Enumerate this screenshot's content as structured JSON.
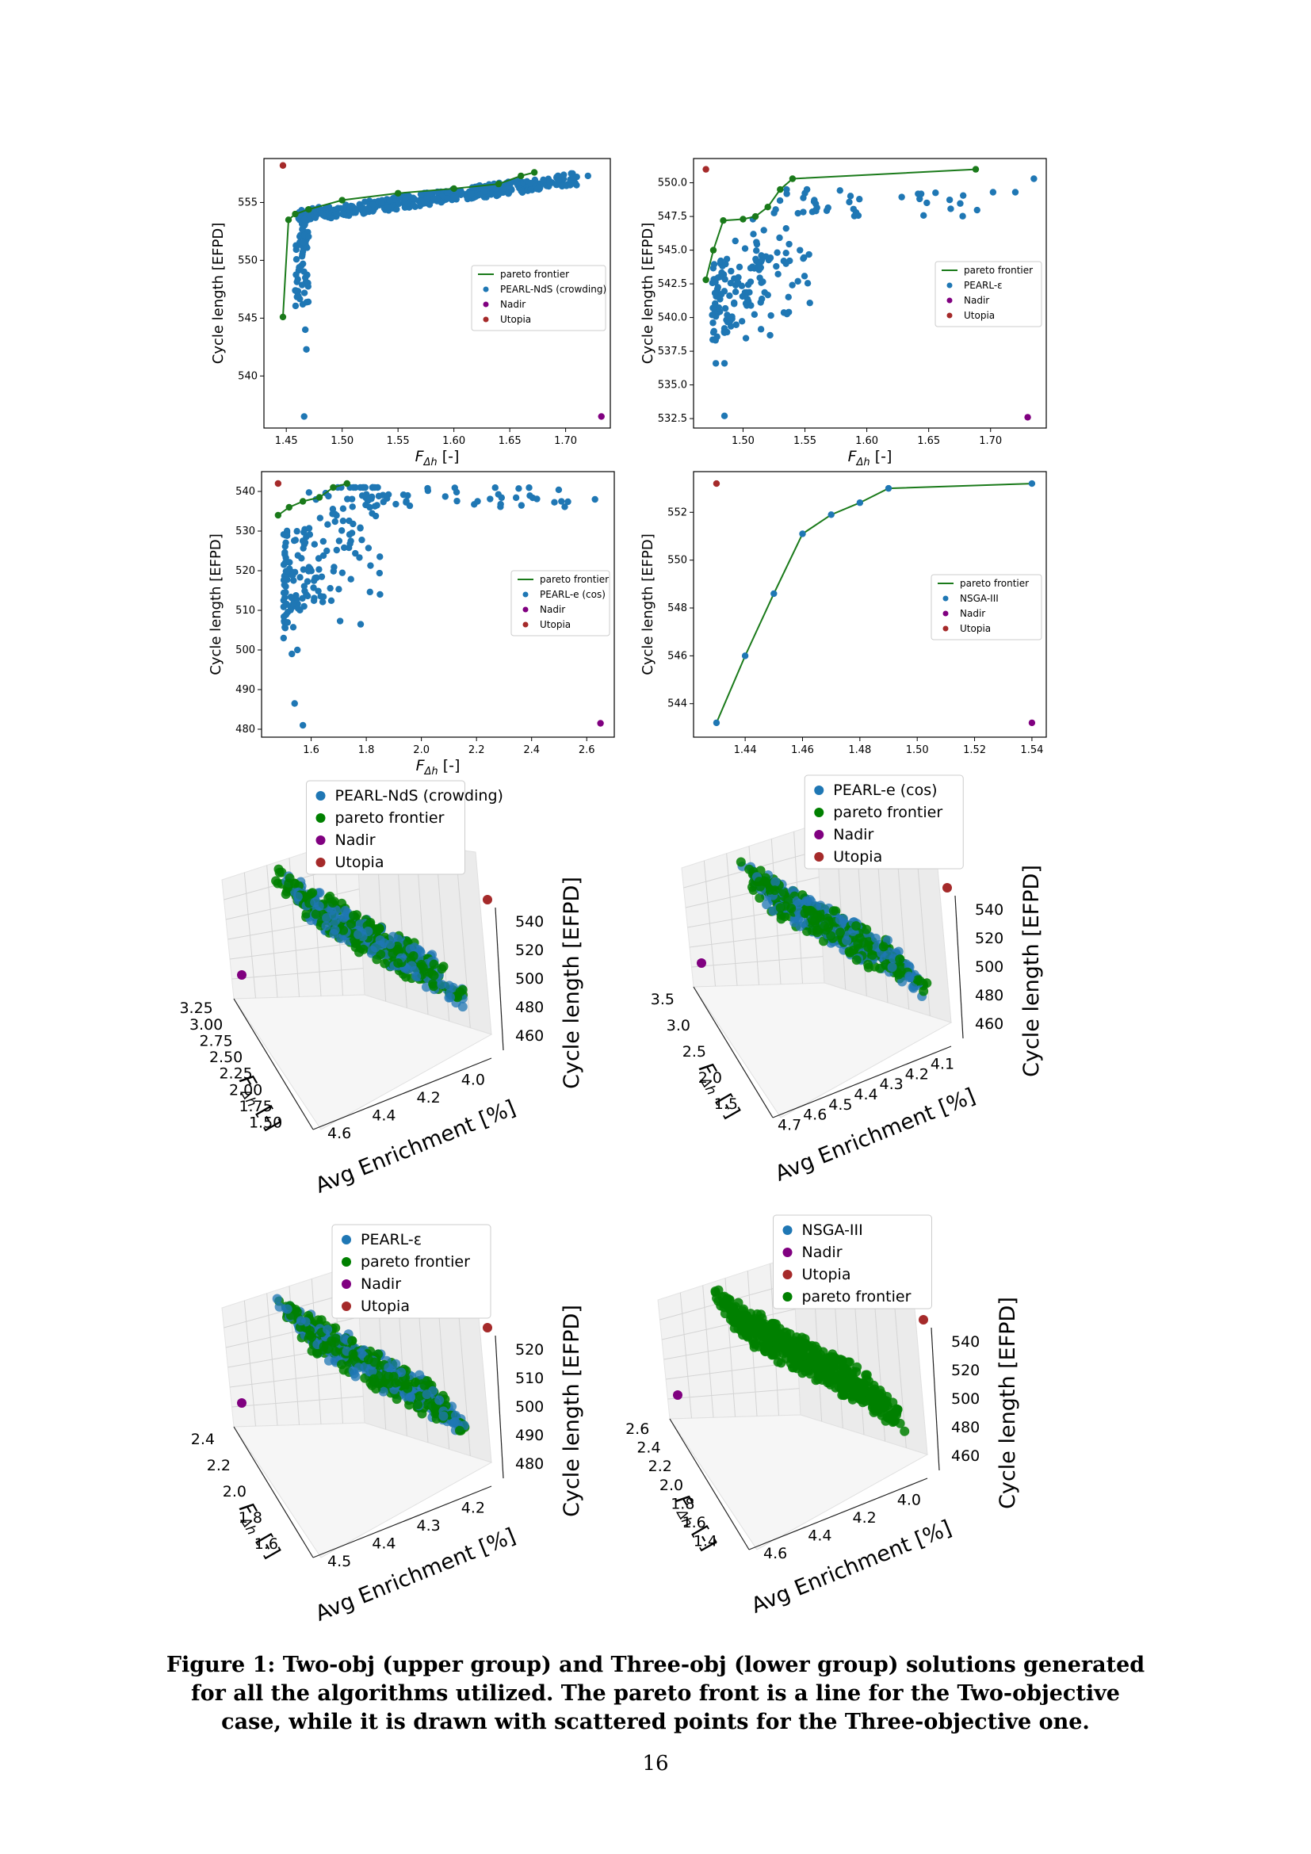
{
  "colors": {
    "blue": "#1f77b4",
    "green": "#008000",
    "line": "#1a7a1a",
    "nadir": "#800080",
    "utopia": "#a52a2a"
  },
  "chart_data": [
    {
      "type": "scatter",
      "legend": [
        "pareto frontier",
        "PEARL-NdS (crowding)",
        "Nadir",
        "Utopia"
      ],
      "legend_position": "center-right",
      "xlabel": "F_Δh [-]",
      "ylabel": "Cycle length [EFPD]",
      "xlim": [
        1.43,
        1.74
      ],
      "ylim": [
        535.5,
        558.8
      ],
      "xticks": [
        "1.45",
        "1.50",
        "1.55",
        "1.60",
        "1.65",
        "1.70"
      ],
      "yticks": [
        "540",
        "545",
        "550",
        "555"
      ],
      "frontier": [
        [
          1.447,
          545.1
        ],
        [
          1.452,
          553.5
        ],
        [
          1.458,
          554.0
        ],
        [
          1.47,
          554.4
        ],
        [
          1.5,
          555.2
        ],
        [
          1.55,
          555.8
        ],
        [
          1.6,
          556.2
        ],
        [
          1.64,
          556.6
        ],
        [
          1.66,
          557.3
        ],
        [
          1.672,
          557.6
        ]
      ],
      "nadir": [
        1.732,
        536.5
      ],
      "utopia": [
        1.447,
        558.2
      ]
    },
    {
      "type": "scatter",
      "legend": [
        "pareto frontier",
        "PEARL-ε",
        "Nadir",
        "Utopia"
      ],
      "legend_position": "center-right",
      "xlabel": "F_Δh [-]",
      "ylabel": "Cycle length [EFPD]",
      "xlim": [
        1.46,
        1.745
      ],
      "ylim": [
        531.8,
        551.8
      ],
      "xticks": [
        "1.50",
        "1.55",
        "1.60",
        "1.65",
        "1.70"
      ],
      "yticks": [
        "532.5",
        "535.0",
        "537.5",
        "540.0",
        "542.5",
        "545.0",
        "547.5",
        "550.0"
      ],
      "frontier": [
        [
          1.47,
          542.8
        ],
        [
          1.476,
          545.0
        ],
        [
          1.484,
          547.2
        ],
        [
          1.5,
          547.3
        ],
        [
          1.51,
          547.5
        ],
        [
          1.52,
          548.2
        ],
        [
          1.53,
          549.5
        ],
        [
          1.54,
          550.3
        ],
        [
          1.688,
          551.0
        ]
      ],
      "nadir": [
        1.73,
        532.6
      ],
      "utopia": [
        1.47,
        551.0
      ]
    },
    {
      "type": "scatter",
      "legend": [
        "pareto frontier",
        "PEARL-e (cos)",
        "Nadir",
        "Utopia"
      ],
      "legend_position": "center-right",
      "xlabel": "F_Δh [-]",
      "ylabel": "Cycle length [EFPD]",
      "xlim": [
        1.42,
        2.7
      ],
      "ylim": [
        478,
        545
      ],
      "xticks": [
        "1.6",
        "1.8",
        "2.0",
        "2.2",
        "2.4",
        "2.6"
      ],
      "yticks": [
        "480",
        "490",
        "500",
        "510",
        "520",
        "530",
        "540"
      ],
      "frontier": [
        [
          1.48,
          534
        ],
        [
          1.52,
          536
        ],
        [
          1.57,
          537.5
        ],
        [
          1.63,
          538.5
        ],
        [
          1.68,
          541
        ],
        [
          1.73,
          542
        ]
      ],
      "nadir": [
        2.65,
        481.5
      ],
      "utopia": [
        1.48,
        542
      ]
    },
    {
      "type": "line",
      "legend": [
        "pareto frontier",
        "NSGA-III",
        "Nadir",
        "Utopia"
      ],
      "legend_position": "center-right",
      "xlabel": "",
      "ylabel": "Cycle length [EFPD]",
      "xlim": [
        1.422,
        1.545
      ],
      "ylim": [
        542.6,
        553.7
      ],
      "xticks": [
        "1.44",
        "1.46",
        "1.48",
        "1.50",
        "1.52",
        "1.54"
      ],
      "yticks": [
        "544",
        "546",
        "548",
        "550",
        "552"
      ],
      "frontier": [
        [
          1.43,
          543.2
        ],
        [
          1.44,
          546.0
        ],
        [
          1.45,
          548.6
        ],
        [
          1.46,
          551.1
        ],
        [
          1.47,
          551.9
        ],
        [
          1.48,
          552.4
        ],
        [
          1.49,
          553.0
        ],
        [
          1.54,
          553.2
        ]
      ],
      "nadir": [
        1.54,
        543.2
      ],
      "utopia": [
        1.43,
        553.2
      ]
    },
    {
      "type": "scatter-3d",
      "legend": [
        "PEARL-NdS (crowding)",
        "pareto frontier",
        "Nadir",
        "Utopia"
      ],
      "xlabel": "F_Δh [-]",
      "ylabel": "Avg Enrichment [%]",
      "zlabel": "Cycle length [EFPD]",
      "xticks": [
        "3.25",
        "3.00",
        "2.75",
        "2.50",
        "2.25",
        "2.00",
        "1.75",
        "1.50"
      ],
      "yticks": [
        "4.6",
        "4.4",
        "4.2",
        "4.0"
      ],
      "zticks": [
        "540",
        "520",
        "500",
        "480",
        "460"
      ]
    },
    {
      "type": "scatter-3d",
      "legend": [
        "PEARL-e (cos)",
        "pareto frontier",
        "Nadir",
        "Utopia"
      ],
      "xlabel": "F_Δh [-]",
      "ylabel": "Avg Enrichment [%]",
      "zlabel": "Cycle length [EFPD]",
      "xticks": [
        "3.5",
        "3.0",
        "2.5",
        "2.0",
        "1.5"
      ],
      "yticks": [
        "4.7",
        "4.6",
        "4.5",
        "4.4",
        "4.3",
        "4.2",
        "4.1"
      ],
      "zticks": [
        "540",
        "520",
        "500",
        "480",
        "460"
      ]
    },
    {
      "type": "scatter-3d",
      "legend": [
        "PEARL-ε",
        "pareto frontier",
        "Nadir",
        "Utopia"
      ],
      "xlabel": "F_Δh [-]",
      "ylabel": "Avg Enrichment [%]",
      "zlabel": "Cycle length [EFPD]",
      "xticks": [
        "2.4",
        "2.2",
        "2.0",
        "1.8",
        "1.6"
      ],
      "yticks": [
        "4.5",
        "4.4",
        "4.3",
        "4.2"
      ],
      "zticks": [
        "520",
        "510",
        "500",
        "490",
        "480"
      ]
    },
    {
      "type": "scatter-3d",
      "legend": [
        "NSGA-III",
        "Nadir",
        "Utopia",
        "pareto frontier"
      ],
      "xlabel": "F_Δh [-]",
      "ylabel": "Avg Enrichment [%]",
      "zlabel": "Cycle length [EFPD]",
      "xticks": [
        "2.6",
        "2.4",
        "2.2",
        "2.0",
        "1.8",
        "1.6",
        "1.4"
      ],
      "yticks": [
        "4.6",
        "4.4",
        "4.2",
        "4.0"
      ],
      "zticks": [
        "540",
        "520",
        "500",
        "480",
        "460"
      ]
    }
  ],
  "caption": "Figure 1: Two-obj (upper group) and Three-obj (lower group) solutions generated for all the algorithms utilized. The pareto front is a line for the Two-objective case, while it is drawn with scattered points for the Three-objective one.",
  "page_number": "16"
}
